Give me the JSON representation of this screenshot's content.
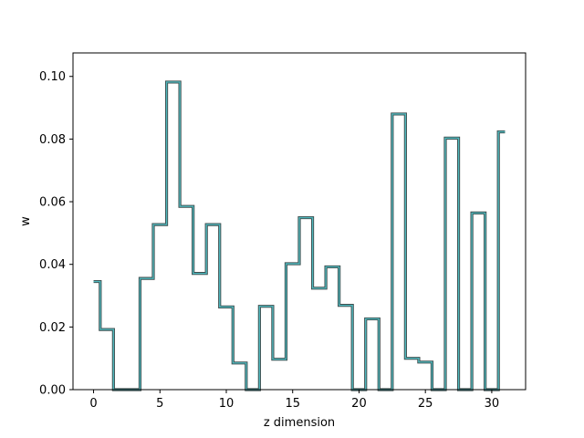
{
  "chart_data": {
    "type": "line",
    "drawstyle": "steps-mid",
    "title": "",
    "xlabel": "z dimension",
    "ylabel": "w",
    "xlim": [
      -1.55,
      32.55
    ],
    "ylim": [
      0,
      0.1075
    ],
    "xticks": [
      0,
      5,
      10,
      15,
      20,
      25,
      30
    ],
    "yticks": [
      0.0,
      0.02,
      0.04,
      0.06,
      0.08,
      0.1
    ],
    "ytick_labels": [
      "0.00",
      "0.02",
      "0.04",
      "0.06",
      "0.08",
      "0.10"
    ],
    "grid": false,
    "legend": "none",
    "colors": {
      "line_outer": "#3d4a4a",
      "line_inner": "#4fb8bd",
      "axes": "#000000",
      "background": "#ffffff"
    },
    "series": [
      {
        "x": [
          0,
          1,
          2,
          3,
          4,
          5,
          6,
          7,
          8,
          9,
          10,
          11,
          12,
          13,
          14,
          15,
          16,
          17,
          18,
          19,
          20,
          21,
          22,
          23,
          24,
          25,
          26,
          27,
          28,
          29,
          30,
          31
        ],
        "values": [
          0.0345,
          0.0192,
          0.0,
          0.0,
          0.0355,
          0.0527,
          0.0982,
          0.0585,
          0.0371,
          0.0527,
          0.0264,
          0.0085,
          0.0,
          0.0266,
          0.0097,
          0.0402,
          0.0549,
          0.0324,
          0.0392,
          0.0269,
          0.0,
          0.0226,
          0.0,
          0.088,
          0.01,
          0.0088,
          0.0,
          0.0803,
          0.0,
          0.0564,
          0.0,
          0.0823
        ]
      }
    ]
  }
}
